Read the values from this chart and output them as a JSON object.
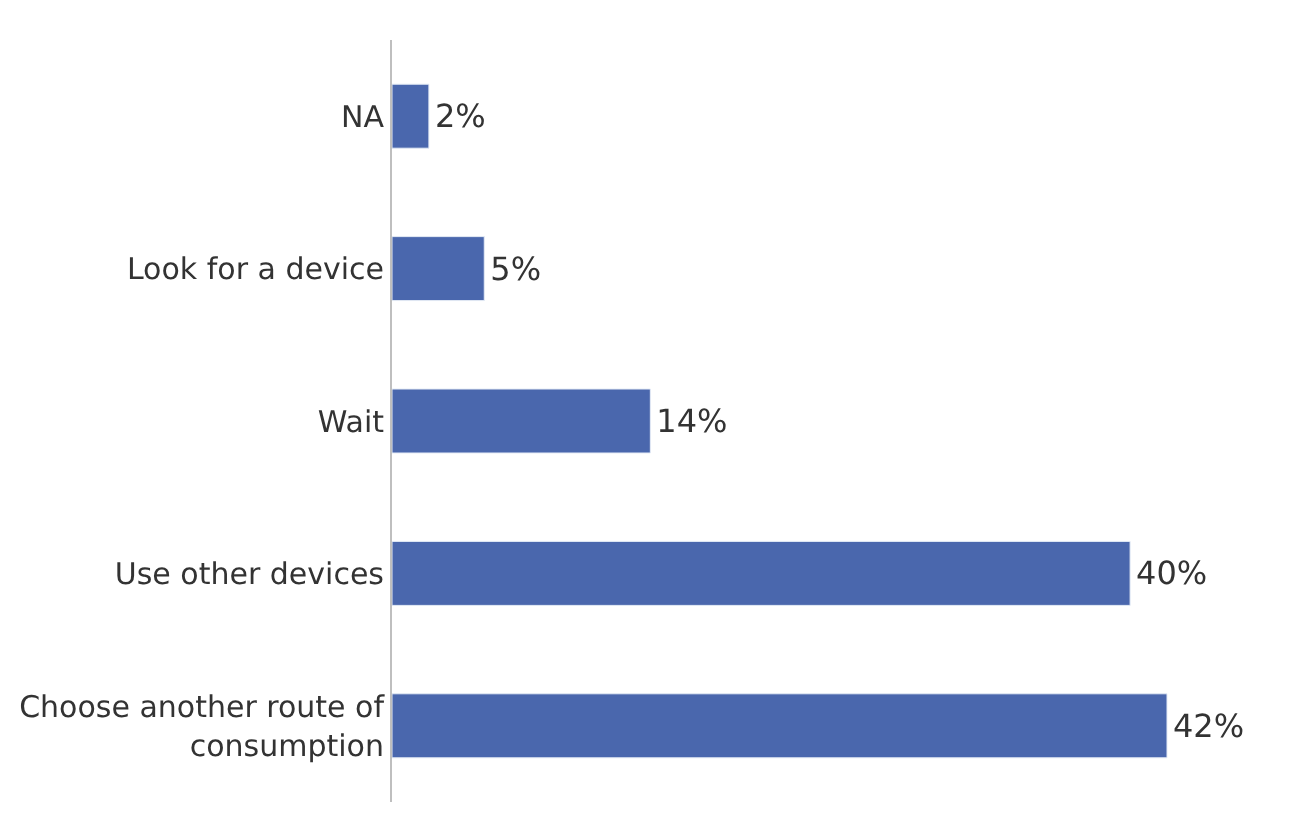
{
  "chart_data": {
    "type": "bar",
    "orientation": "horizontal",
    "categories": [
      "NA",
      "Look for a device",
      "Wait",
      "Use other devices",
      "Choose another route of consumption"
    ],
    "values": [
      2,
      5,
      14,
      40,
      42
    ],
    "value_labels": [
      "2%",
      "5%",
      "14%",
      "40%",
      "42%"
    ],
    "color": "#4a67ad",
    "legend": false
  }
}
